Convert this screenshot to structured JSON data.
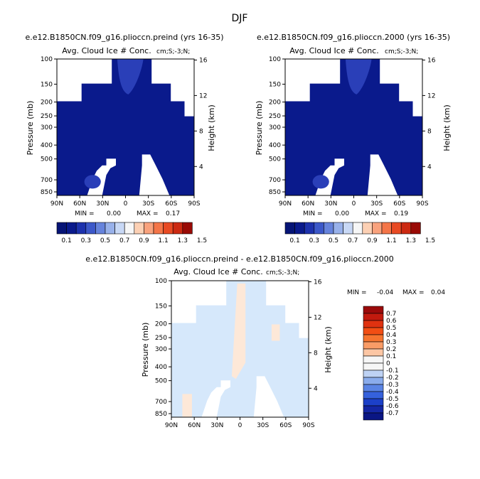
{
  "page_title": "DJF",
  "colors": {
    "background": "#ffffff",
    "dark_navy": "#0a1a8c",
    "light_blue": "#d6e8fb",
    "light_peach": "#fde8d8",
    "blue_blob": "#2a3fb8"
  },
  "chart_data": [
    {
      "type": "heatmap",
      "title": "e.e12.B1850CN.f09_g16.plioccn.preind (yrs 16-35)",
      "subtitle": "Avg. Cloud Ice # Conc.",
      "units": "cm;S;-3;N;",
      "xlabel": "",
      "ylabel": "Pressure (mb)",
      "ylabel_right": "Height (km)",
      "x_ticks": [
        "90N",
        "60N",
        "30N",
        "0",
        "30S",
        "60S",
        "90S"
      ],
      "y_ticks": [
        "100",
        "150",
        "200",
        "250",
        "300",
        "400",
        "500",
        "700",
        "850"
      ],
      "y_ticks_right": [
        "16",
        "12",
        "8",
        "4"
      ],
      "stats": {
        "min_label": "MIN =",
        "min": "0.00",
        "max_label": "MAX =",
        "max": "0.17"
      },
      "colorbar": {
        "labels": [
          "0.1",
          "0.3",
          "0.5",
          "0.7",
          "0.9",
          "1.1",
          "1.3",
          "1.5"
        ],
        "colors": [
          "#061476",
          "#0a1a8c",
          "#1d32ad",
          "#3c58c9",
          "#6683dc",
          "#98b1ea",
          "#c8d8f5",
          "#f6f6f6",
          "#fcd0b4",
          "#f9a27d",
          "#f47548",
          "#e84a23",
          "#cc2a12",
          "#990a05"
        ]
      }
    },
    {
      "type": "heatmap",
      "title": "e.e12.B1850CN.f09_g16.plioccn.2000 (yrs 16-35)",
      "subtitle": "Avg. Cloud Ice # Conc.",
      "units": "cm;S;-3;N;",
      "xlabel": "",
      "ylabel": "Pressure (mb)",
      "ylabel_right": "Height (km)",
      "x_ticks": [
        "90N",
        "60N",
        "30N",
        "0",
        "30S",
        "60S",
        "90S"
      ],
      "y_ticks": [
        "100",
        "150",
        "200",
        "250",
        "300",
        "400",
        "500",
        "700",
        "850"
      ],
      "y_ticks_right": [
        "16",
        "12",
        "8",
        "4"
      ],
      "stats": {
        "min_label": "MIN =",
        "min": "0.00",
        "max_label": "MAX =",
        "max": "0.19"
      },
      "colorbar": {
        "labels": [
          "0.1",
          "0.3",
          "0.5",
          "0.7",
          "0.9",
          "1.1",
          "1.3",
          "1.5"
        ],
        "colors": [
          "#061476",
          "#0a1a8c",
          "#1d32ad",
          "#3c58c9",
          "#6683dc",
          "#98b1ea",
          "#c8d8f5",
          "#f6f6f6",
          "#fcd0b4",
          "#f9a27d",
          "#f47548",
          "#e84a23",
          "#cc2a12",
          "#990a05"
        ]
      }
    },
    {
      "type": "heatmap",
      "title": "e.e12.B1850CN.f09_g16.plioccn.preind - e.e12.B1850CN.f09_g16.plioccn.2000",
      "subtitle": "Avg. Cloud Ice # Conc.",
      "units": "cm;S;-3;N;",
      "xlabel": "",
      "ylabel": "Pressure (mb)",
      "ylabel_right": "Height (km)",
      "x_ticks": [
        "90N",
        "60N",
        "30N",
        "0",
        "30S",
        "60S",
        "90S"
      ],
      "y_ticks": [
        "100",
        "150",
        "200",
        "250",
        "300",
        "400",
        "500",
        "700",
        "850"
      ],
      "y_ticks_right": [
        "16",
        "12",
        "8",
        "4"
      ],
      "stats": {
        "min_label": "MIN =",
        "min": "-0.04",
        "max_label": "MAX =",
        "max": "0.04"
      },
      "colorbar": {
        "labels": [
          "0.7",
          "0.6",
          "0.5",
          "0.4",
          "0.3",
          "0.2",
          "0.1",
          "0",
          "-0.1",
          "-0.2",
          "-0.3",
          "-0.4",
          "-0.5",
          "-0.6",
          "-0.7"
        ],
        "colors": [
          "#9b0a0a",
          "#c21a0e",
          "#e03210",
          "#f24e14",
          "#f6742f",
          "#f99c66",
          "#fcc6a4",
          "#f6f6f6",
          "#f6f6f6",
          "#bed2f4",
          "#8aacec",
          "#5a84e4",
          "#3561dc",
          "#1c40c8",
          "#1426a4",
          "#0a1684"
        ]
      }
    }
  ]
}
